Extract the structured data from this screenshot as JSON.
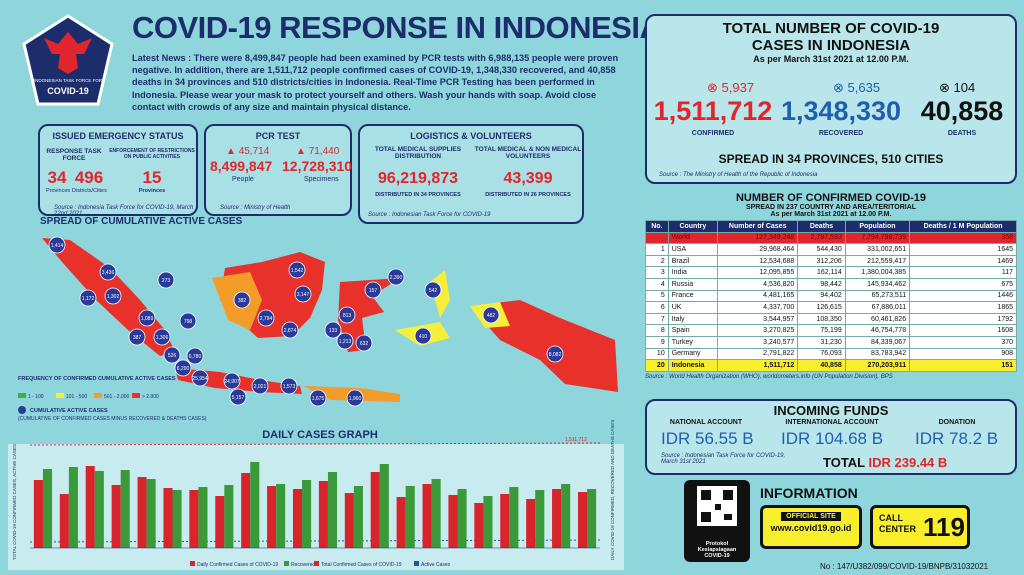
{
  "header": {
    "logo_text": "COVID-19",
    "logo_caption": "INDONESIAN TASK FORCE FOR",
    "title": "COVID-19 RESPONSE IN INDONESIA",
    "news": "Latest News : There were 8,499,847 people had been examined by PCR tests with 6,988,135 people were proven negative. In addition, there are 1,511,712 people confirmed cases of COVID-19, 1,348,330 recovered, and 40,858 deaths in 34 provinces and 510 districts/cities in Indonesia. Real-Time PCR Testing has been performed in Indonesia. Please wear your mask to protect yourself and others. Wash your hands with soap. Avoid close contact with crowds of any size and maintain physical distance."
  },
  "emergency": {
    "title": "ISSUED EMERGENCY STATUS",
    "task_force_label": "RESPONSE TASK FORCE",
    "restriction_label": "ENFORCEMENT OF RESTRICTIONS ON PUBLIC ACTIVITIES",
    "provinces": "34",
    "provinces_label": "Provinces",
    "districts": "496",
    "districts_label": "Districts/Cities",
    "restricted": "15",
    "restricted_label": "Provinces",
    "source": "Source : Indonesia Task Force for COVID-19, March 22nd 2021"
  },
  "pcr": {
    "title": "PCR TEST",
    "people_increase": "45,714",
    "specimens_increase": "71,440",
    "people": "8,499,847",
    "people_label": "People",
    "specimens": "12,728,310",
    "specimens_label": "Specimens",
    "source": "Source : Ministry of Health"
  },
  "logistics": {
    "title": "LOGISTICS & VOLUNTEERS",
    "supplies_label": "TOTAL MEDICAL SUPPLIES DISTRIBUTION",
    "supplies": "96,219,873",
    "supplies_note": "DISTRIBUTED IN 34 PROVINCES",
    "volunteers_label": "TOTAL MEDICAL & NON MEDICAL VOLUNTEERS",
    "volunteers": "43,399",
    "volunteers_note": "DISTRIBUTED IN 26 PROVINCES",
    "source": "Source : Indonesian Task Force for COVID-19"
  },
  "map": {
    "title": "SPREAD OF CUMULATIVE ACTIVE CASES",
    "bubbles": [
      "1,414",
      "3,436",
      "1,172",
      "1,302",
      "1,089",
      "798",
      "387",
      "1,306",
      "526",
      "6,780",
      "6,290",
      "25,954",
      "24,907",
      "5,157",
      "2,021",
      "1,573",
      "1,675",
      "1,960",
      "382",
      "2,794",
      "2,874",
      "1,542",
      "3,147",
      "273",
      "2,390",
      "157",
      "813",
      "133",
      "1,213",
      "632",
      "410",
      "482",
      "542",
      "8,082"
    ],
    "legend_title": "FREQUENCY OF CONFIRMED CUMULATIVE ACTIVE CASES",
    "legend": [
      {
        "label": "1 - 100",
        "color": "#3fae49"
      },
      {
        "label": "101 - 500",
        "color": "#f6ef3a"
      },
      {
        "label": "501 - 2.000",
        "color": "#f39c2a"
      },
      {
        "label": "> 2.000",
        "color": "#e8312a"
      }
    ],
    "bubble_legend": "CUMULATIVE ACTIVE CASES",
    "bubble_note": "(CUMULATIVE OF CONFIRMED CASES MINUS RECOVERED & DEATHS CASES)"
  },
  "chart_data": {
    "type": "bar",
    "title": "DAILY CASES GRAPH",
    "y_label": "TOTAL COVID-19 CONFIRMED CASES, ACTIVE CASES",
    "y2_label": "DAILY COVID-19 CONFIRMED, RECOVERED AND DEATHS CASES",
    "total_label": "1,511,712",
    "categories": [
      null,
      null,
      null,
      null,
      null,
      null,
      null,
      null,
      null,
      null,
      null,
      null,
      null,
      null,
      null,
      null,
      null,
      null,
      null,
      null,
      null,
      null
    ],
    "ylim": [
      0,
      10000
    ],
    "series": [
      {
        "name": "Daily Confirmed Cases of COVID-19",
        "color": "#d8242a",
        "values": [
          6800,
          5400,
          8200,
          6300,
          7100,
          6000,
          5800,
          5200,
          7500,
          6200,
          5900,
          6700,
          5500,
          7600,
          5100,
          6400,
          5300,
          4500,
          5400,
          4900,
          5900,
          5600
        ]
      },
      {
        "name": "Recovered",
        "color": "#3a9a3a",
        "values": [
          7900,
          8100,
          7700,
          7800,
          6900,
          5800,
          6100,
          6300,
          8600,
          6400,
          6800,
          7600,
          6200,
          8400,
          6200,
          6900,
          5900,
          5200,
          6100,
          5800,
          6400,
          5900
        ]
      }
    ],
    "line_legend": [
      {
        "name": "Total Confirmed Cases of COVID-19",
        "color": "#d8242a"
      },
      {
        "name": "Active Cases",
        "color": "#2a4fb0"
      }
    ]
  },
  "totals": {
    "title": "TOTAL NUMBER OF COVID-19 CASES IN INDONESIA",
    "date": "As per March 31st 2021 at 12.00 P.M.",
    "confirmed_increase": "5,937",
    "confirmed": "1,511,712",
    "confirmed_label": "CONFIRMED",
    "recovered_increase": "5,635",
    "recovered": "1,348,330",
    "recovered_label": "RECOVERED",
    "deaths_increase": "104",
    "deaths": "40,858",
    "deaths_label": "DEATHS",
    "spread": "SPREAD IN 34 PROVINCES, 510 CITIES",
    "source": "Source : The Ministry of Health of the Republic of Indonesia"
  },
  "table": {
    "title": "NUMBER OF CONFIRMED COVID-19",
    "subtitle": "SPREAD IN 237 COUNTRY AND AREA/TERITORIAL",
    "date": "As per March 31st 2021 at 12.00 P.M.",
    "header": [
      "No.",
      "Country",
      "Number of Cases",
      "Deaths",
      "Population",
      "Deaths / 1 M Population"
    ],
    "rows": [
      [
        "",
        "World",
        "127,349,248",
        "2,787,593",
        "7,794,798,739",
        "358"
      ],
      [
        "1",
        "USA",
        "29,968,464",
        "544,430",
        "331,002,651",
        "1645"
      ],
      [
        "2",
        "Brazil",
        "12,534,688",
        "312,206",
        "212,559,417",
        "1469"
      ],
      [
        "3",
        "India",
        "12,095,855",
        "162,114",
        "1,380,004,385",
        "117"
      ],
      [
        "4",
        "Russia",
        "4,536,820",
        "98,442",
        "145,934,462",
        "675"
      ],
      [
        "5",
        "France",
        "4,481,165",
        "94,402",
        "65,273,511",
        "1446"
      ],
      [
        "6",
        "UK",
        "4,337,700",
        "126,615",
        "67,886,011",
        "1865"
      ],
      [
        "7",
        "Italy",
        "3,544,957",
        "108,350",
        "60,461,826",
        "1792"
      ],
      [
        "8",
        "Spain",
        "3,270,825",
        "75,199",
        "46,754,778",
        "1608"
      ],
      [
        "9",
        "Turkey",
        "3,240,577",
        "31,230",
        "84,339,067",
        "370"
      ],
      [
        "10",
        "Germany",
        "2,791,822",
        "76,093",
        "83,783,942",
        "908"
      ],
      [
        "20",
        "Indonesia",
        "1,511,712",
        "40,858",
        "270,203,911",
        "151"
      ]
    ],
    "source": "Source : World Health Organization (WHO), worldometers.info (UN Population Division), BPS"
  },
  "funds": {
    "title": "INCOMING FUNDS",
    "national_label": "NATIONAL ACCOUNT",
    "national": "IDR 56.55 B",
    "international_label": "INTERNATIONAL ACCOUNT",
    "international": "IDR 104.68 B",
    "donation_label": "DONATION",
    "donation": "IDR 78.2 B",
    "source": "Source : Indonesian Task Force for COVID-19, March 31st 2021",
    "total_label": "TOTAL",
    "total": "IDR 239.44 B"
  },
  "info": {
    "title": "INFORMATION",
    "qr_caption": "Protokol Kesiapsiagaan COVID-19",
    "site_label": "OFFICIAL SITE",
    "site": "www.covid19.go.id",
    "call_label": "CALL CENTER",
    "call": "119"
  },
  "footer": "No : 147/U382/099/COVID-19/BNPB/31032021"
}
